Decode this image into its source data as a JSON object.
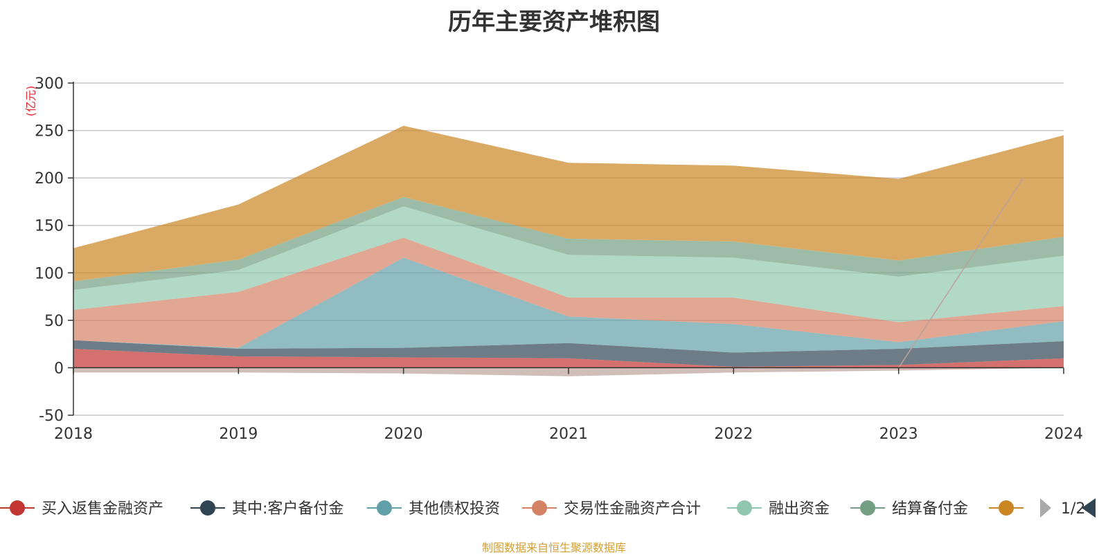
{
  "chart_data": {
    "type": "area",
    "stacked": true,
    "title": "历年主要资产堆积图",
    "unit": "(亿元)",
    "categories": [
      "2018",
      "2019",
      "2020",
      "2021",
      "2022",
      "2023",
      "2024"
    ],
    "ylim": [
      -50,
      300
    ],
    "yticks": [
      "300",
      "250",
      "200",
      "150",
      "100",
      "50",
      "0",
      "-50"
    ],
    "grid": true,
    "series": [
      {
        "name": "买入返售金融资产",
        "color": "#c23531",
        "values": [
          20,
          12,
          11,
          10,
          1,
          3,
          10
        ]
      },
      {
        "name": "其中:客户备付金",
        "color": "#2f4554",
        "values": [
          9,
          8,
          10,
          16,
          15,
          17,
          18
        ]
      },
      {
        "name": "其他债权投资",
        "color": "#61a0a8",
        "values": [
          0,
          1,
          95,
          28,
          30,
          7,
          21
        ]
      },
      {
        "name": "交易性金融资产合计",
        "color": "#d48265",
        "values": [
          32,
          59,
          21,
          20,
          28,
          21,
          16
        ]
      },
      {
        "name": "融出资金",
        "color": "#91c7ae",
        "values": [
          21,
          23,
          33,
          45,
          42,
          48,
          53
        ]
      },
      {
        "name": "结算备付金",
        "color": "#749f83",
        "values": [
          9,
          11,
          10,
          17,
          17,
          17,
          20
        ]
      },
      {
        "name": "",
        "color": "#ca8622",
        "values": [
          35,
          58,
          75,
          80,
          80,
          86,
          107
        ]
      }
    ],
    "negative_series": {
      "name": "",
      "color": "#bda29a",
      "values": [
        -5,
        -5,
        -6,
        -9,
        -5,
        -3,
        0
      ]
    },
    "legend": {
      "position": "bottom",
      "page": "1/2"
    }
  },
  "footer": {
    "source": "制图数据来自恒生聚源数据库"
  }
}
